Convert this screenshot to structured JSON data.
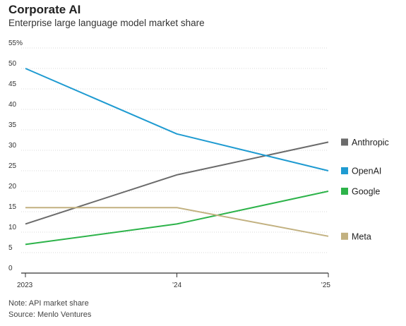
{
  "header": {
    "title": "Corporate AI",
    "subtitle": "Enterprise large language model market share"
  },
  "footer": {
    "note": "Note: API market share",
    "source": "Source: Menlo Ventures"
  },
  "chart_data": {
    "type": "line",
    "title": "Corporate AI",
    "subtitle": "Enterprise large language model market share",
    "xlabel": "",
    "ylabel": "",
    "categories": [
      "2023",
      "’24",
      "’25"
    ],
    "ylim": [
      0,
      55
    ],
    "yticks": [
      0,
      5,
      10,
      15,
      20,
      25,
      30,
      35,
      40,
      45,
      50,
      55
    ],
    "ytick_labels": [
      "0",
      "5",
      "10",
      "15",
      "20",
      "25",
      "30",
      "35",
      "40",
      "45",
      "50",
      "55%"
    ],
    "grid": true,
    "legend_position": "right, at line ends",
    "series": [
      {
        "name": "Anthropic",
        "color": "#6b6b6b",
        "values": [
          12,
          24,
          32
        ]
      },
      {
        "name": "OpenAI",
        "color": "#1f9bd1",
        "values": [
          50,
          34,
          25
        ]
      },
      {
        "name": "Google",
        "color": "#2db34a",
        "values": [
          7,
          12,
          20
        ]
      },
      {
        "name": "Meta",
        "color": "#c2b180",
        "values": [
          16,
          16,
          9
        ]
      }
    ]
  }
}
